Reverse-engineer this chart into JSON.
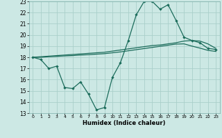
{
  "xlabel": "Humidex (Indice chaleur)",
  "bg_color": "#cce8e4",
  "grid_color": "#aacfca",
  "line_color": "#1a6b5a",
  "xlim": [
    -0.5,
    23.5
  ],
  "ylim": [
    13,
    23
  ],
  "xticks": [
    0,
    1,
    2,
    3,
    4,
    5,
    6,
    7,
    8,
    9,
    10,
    11,
    12,
    13,
    14,
    15,
    16,
    17,
    18,
    19,
    20,
    21,
    22,
    23
  ],
  "yticks": [
    13,
    14,
    15,
    16,
    17,
    18,
    19,
    20,
    21,
    22,
    23
  ],
  "curve1_x": [
    0,
    1,
    2,
    3,
    4,
    5,
    6,
    7,
    8,
    9,
    10,
    11,
    12,
    13,
    14,
    15,
    16,
    17,
    18,
    19,
    20,
    21,
    22,
    23
  ],
  "curve1_y": [
    18.0,
    17.8,
    17.0,
    17.2,
    15.3,
    15.2,
    15.8,
    14.7,
    13.3,
    13.5,
    16.2,
    17.5,
    19.5,
    21.8,
    23.0,
    23.0,
    22.3,
    22.7,
    21.3,
    19.8,
    19.5,
    19.3,
    18.8,
    18.7
  ],
  "curve2_x": [
    0,
    1,
    2,
    3,
    4,
    5,
    6,
    7,
    8,
    9,
    10,
    11,
    12,
    13,
    14,
    15,
    16,
    17,
    18,
    19,
    20,
    21,
    22,
    23
  ],
  "curve2_y": [
    18.0,
    18.05,
    18.1,
    18.15,
    18.2,
    18.25,
    18.3,
    18.35,
    18.4,
    18.45,
    18.55,
    18.65,
    18.75,
    18.85,
    18.95,
    19.05,
    19.1,
    19.2,
    19.3,
    19.45,
    19.5,
    19.45,
    19.2,
    18.8
  ],
  "curve3_x": [
    0,
    1,
    2,
    3,
    4,
    5,
    6,
    7,
    8,
    9,
    10,
    11,
    12,
    13,
    14,
    15,
    16,
    17,
    18,
    19,
    20,
    21,
    22,
    23
  ],
  "curve3_y": [
    18.0,
    18.0,
    18.05,
    18.08,
    18.12,
    18.15,
    18.2,
    18.23,
    18.28,
    18.32,
    18.4,
    18.48,
    18.58,
    18.68,
    18.78,
    18.88,
    18.98,
    19.08,
    19.18,
    19.2,
    19.0,
    18.82,
    18.62,
    18.52
  ]
}
